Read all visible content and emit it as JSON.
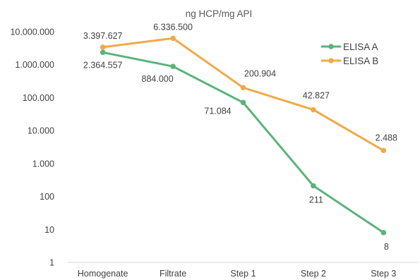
{
  "chart_data": {
    "type": "line",
    "title": "ng HCP/mg API",
    "xlabel": "",
    "ylabel": "",
    "y_scale": "log",
    "ylim": [
      1,
      10000000
    ],
    "y_tick_values": [
      1,
      10,
      100,
      1000,
      10000,
      100000,
      1000000,
      10000000
    ],
    "y_tick_labels": [
      "1",
      "10",
      "100",
      "1.000",
      "10.000",
      "100.000",
      "1.000.000",
      "10.000.000"
    ],
    "categories": [
      "Homogenate",
      "Filtrate",
      "Step 1",
      "Step 2",
      "Step 3"
    ],
    "series": [
      {
        "name": "ELISA A",
        "color": "#5BB37A",
        "values": [
          2364557,
          884000,
          71084,
          211,
          8
        ],
        "labels": [
          "2.364.557",
          "884.000",
          "71.084",
          "211",
          "8"
        ]
      },
      {
        "name": "ELISA B",
        "color": "#F0A94A",
        "values": [
          3397627,
          6336500,
          200904,
          42827,
          2488
        ],
        "labels": [
          "3.397.627",
          "6.336.500",
          "200.904",
          "42.827",
          "2.488"
        ]
      }
    ],
    "grid": false,
    "legend_position": "top-right"
  }
}
